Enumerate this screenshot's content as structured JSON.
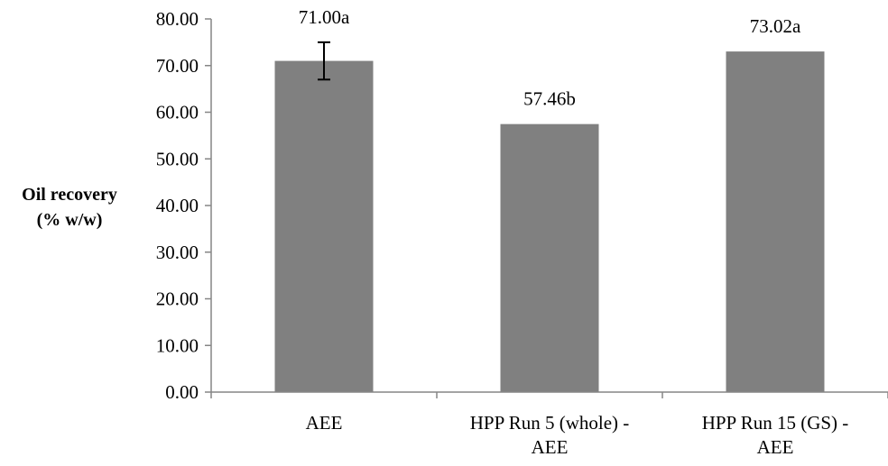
{
  "chart_data": {
    "type": "bar",
    "title": "",
    "xlabel": "",
    "ylabel_lines": [
      "Oil recovery",
      "(% w/w)"
    ],
    "categories": [
      [
        "AEE"
      ],
      [
        "HPP Run 5 (whole) -",
        "AEE"
      ],
      [
        "HPP Run 15 (GS) -",
        "AEE"
      ]
    ],
    "values": [
      71.0,
      57.46,
      73.02
    ],
    "data_labels": [
      "71.00a",
      "57.46b",
      "73.02a"
    ],
    "error_bars": [
      {
        "low": 67.0,
        "high": 75.0
      },
      null,
      null
    ],
    "ylim": [
      0,
      80
    ],
    "y_ticks": [
      "0.00",
      "10.00",
      "20.00",
      "30.00",
      "40.00",
      "50.00",
      "60.00",
      "70.00",
      "80.00"
    ],
    "bar_color": "#808080",
    "axis_color": "#868686",
    "grid": false,
    "legend": "none"
  }
}
